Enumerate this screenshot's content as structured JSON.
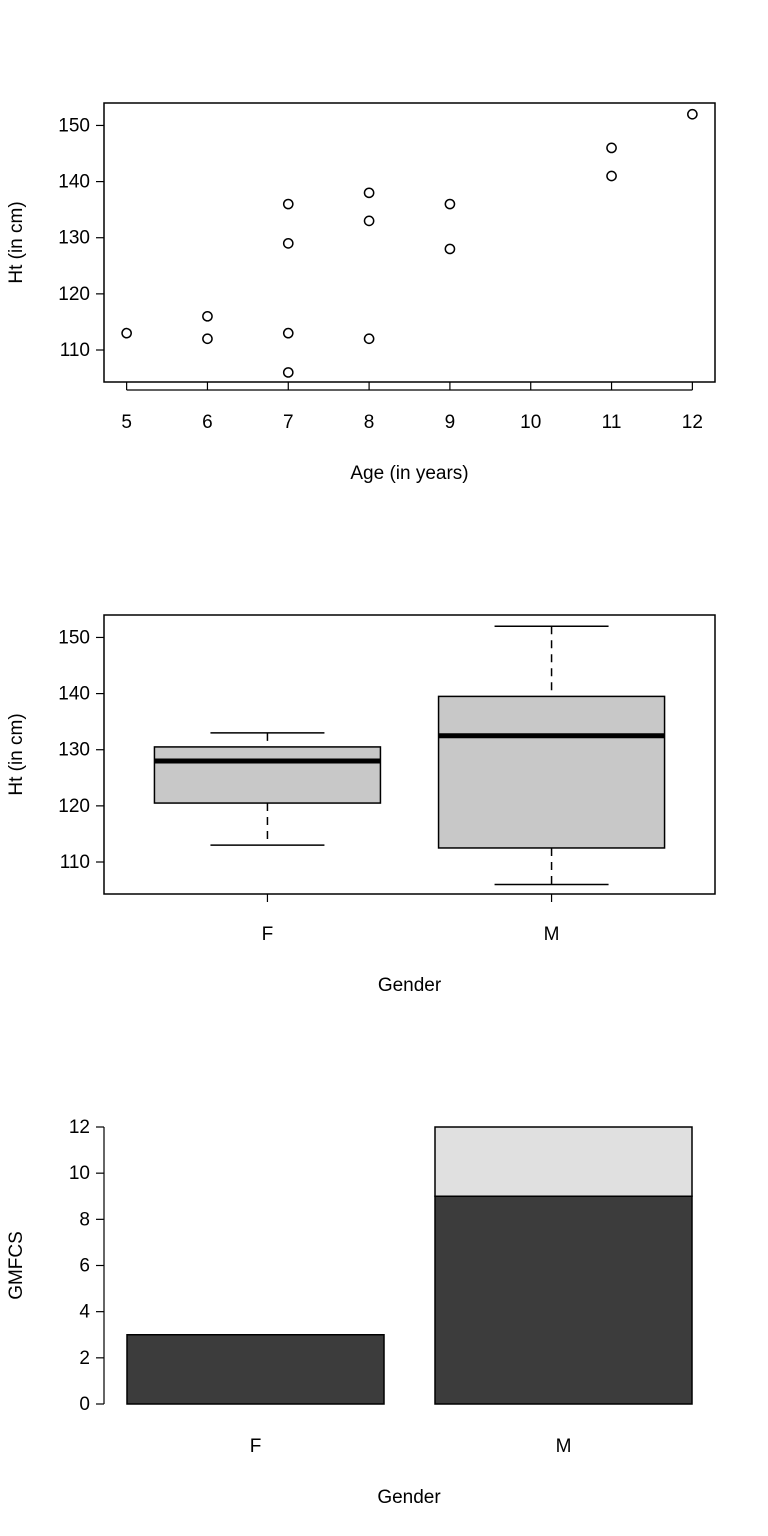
{
  "chart_data": [
    {
      "type": "scatter",
      "xlabel": "Age (in years)",
      "ylabel": "Ht (in cm)",
      "xlim": [
        4.72,
        12.28
      ],
      "ylim": [
        104.3,
        154.0
      ],
      "xticks": [
        5,
        6,
        7,
        8,
        9,
        10,
        11,
        12
      ],
      "yticks": [
        110,
        120,
        130,
        140,
        150
      ],
      "points": [
        {
          "x": 5,
          "y": 113
        },
        {
          "x": 6,
          "y": 116
        },
        {
          "x": 6,
          "y": 112
        },
        {
          "x": 7,
          "y": 136
        },
        {
          "x": 7,
          "y": 129
        },
        {
          "x": 7,
          "y": 113
        },
        {
          "x": 7,
          "y": 106
        },
        {
          "x": 8,
          "y": 138
        },
        {
          "x": 8,
          "y": 133
        },
        {
          "x": 8,
          "y": 112
        },
        {
          "x": 9,
          "y": 136
        },
        {
          "x": 9,
          "y": 128
        },
        {
          "x": 11,
          "y": 146
        },
        {
          "x": 11,
          "y": 141
        },
        {
          "x": 12,
          "y": 152
        }
      ]
    },
    {
      "type": "box",
      "xlabel": "Gender",
      "ylabel": "Ht (in cm)",
      "ylim": [
        104.3,
        154.0
      ],
      "yticks": [
        110,
        120,
        130,
        140,
        150
      ],
      "fill": "#c8c8c8",
      "categories": [
        "F",
        "M"
      ],
      "boxes": [
        {
          "min": 113,
          "q1": 120.5,
          "median": 128,
          "q3": 130.5,
          "max": 133
        },
        {
          "min": 106,
          "q1": 112.5,
          "median": 132.5,
          "q3": 139.5,
          "max": 152
        }
      ]
    },
    {
      "type": "bar",
      "stacked": true,
      "xlabel": "Gender",
      "ylabel": "GMFCS",
      "ylim": [
        0,
        12
      ],
      "yticks": [
        0,
        2,
        4,
        6,
        8,
        10,
        12
      ],
      "categories": [
        "F",
        "M"
      ],
      "series": [
        {
          "values": [
            3,
            9
          ],
          "color": "#3c3c3c"
        },
        {
          "values": [
            0,
            3
          ],
          "color": "#e0e0e0"
        }
      ]
    }
  ]
}
